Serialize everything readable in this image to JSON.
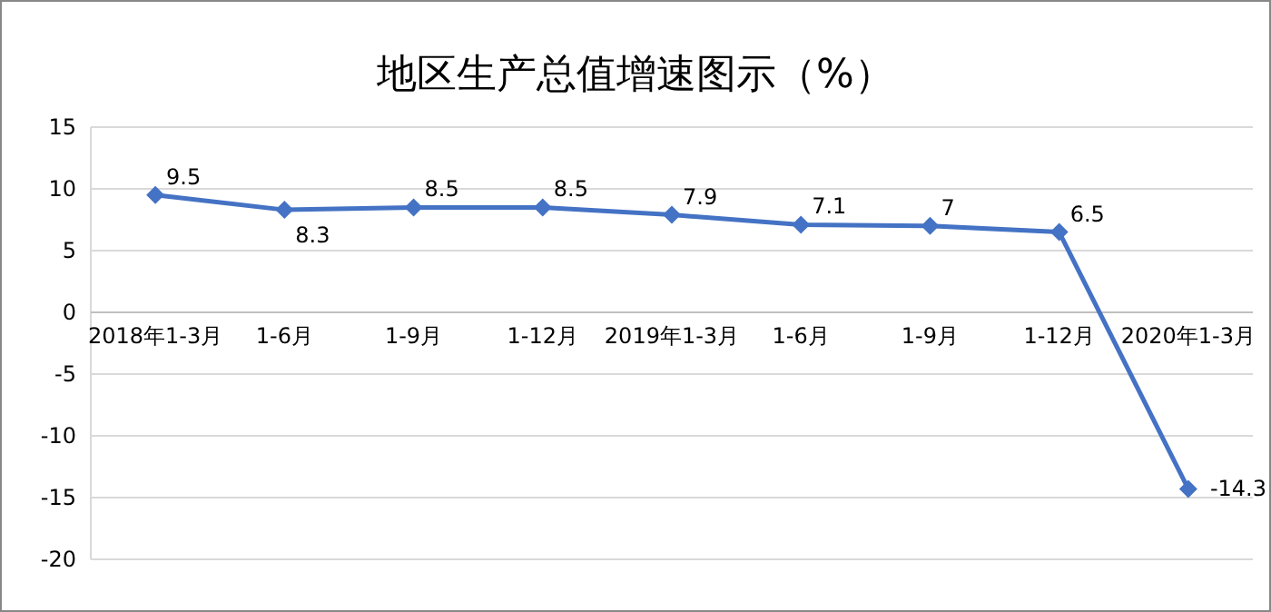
{
  "chart_data": {
    "type": "line",
    "title": "地区生产总值增速图示（%）",
    "categories": [
      "2018年1-3月",
      "1-6月",
      "1-9月",
      "1-12月",
      "2019年1-3月",
      "1-6月",
      "1-9月",
      "1-12月",
      "2020年1-3月"
    ],
    "series": [
      {
        "color": "#4472c4",
        "values": [
          9.5,
          8.3,
          8.5,
          8.5,
          7.9,
          7.1,
          7,
          6.5,
          -14.3
        ]
      }
    ],
    "ylim": [
      -20,
      15
    ],
    "yticks": [
      -20,
      -15,
      -10,
      -5,
      0,
      5,
      10,
      15
    ],
    "grid": "y",
    "marker": "diamond",
    "line_style": "solid",
    "data_labels": true
  }
}
